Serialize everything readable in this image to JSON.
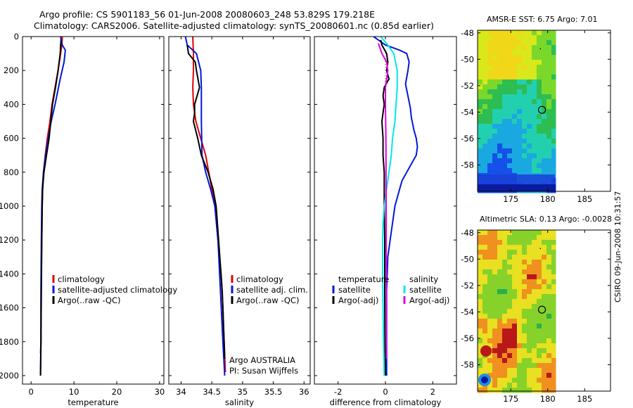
{
  "title_line1": "Argo profile: CS 5901183_56 01-Jun-2008 20080603_248 53.829S 179.218E",
  "title_line2": "Climatology: CARS2006. Satellite-adjusted climatology: synTS_20080601.nc (0.85d earlier)",
  "stamp": "CSIRO 09-Jun-2008 10:31:57",
  "colors": {
    "red": "#e00000",
    "blue": "#0018d8",
    "black": "#000000",
    "cyan": "#00e8e8",
    "magenta": "#e000e0"
  },
  "chart_data": [
    {
      "type": "line",
      "panel": "temperature",
      "xlabel": "temperature",
      "ylabel": "",
      "xlim": [
        -2,
        31
      ],
      "ylim": [
        2050,
        0
      ],
      "xticks": [
        "0",
        "10",
        "20",
        "30"
      ],
      "yticks": [
        "0",
        "200",
        "400",
        "600",
        "800",
        "1000",
        "1200",
        "1400",
        "1600",
        "1800",
        "2000"
      ],
      "legend": [
        "climatology",
        "satellite-adjusted climatology",
        "Argo(..raw -QC)"
      ],
      "series": [
        {
          "name": "climatology",
          "color": "red",
          "x": [
            7.3,
            7.2,
            6.3,
            5.6,
            4.9,
            4.4,
            3.8,
            3.3,
            2.9,
            2.7,
            2.6,
            2.5,
            2.4,
            2.3,
            2.3,
            2.2
          ],
          "y": [
            0,
            50,
            200,
            300,
            400,
            500,
            600,
            700,
            800,
            900,
            1000,
            1200,
            1400,
            1600,
            1800,
            1870
          ]
        },
        {
          "name": "satellite-adjusted climatology",
          "color": "blue",
          "x": [
            6.9,
            7.0,
            7.3,
            8.0,
            7.7,
            6.8,
            5.6,
            4.7,
            4.0,
            3.4,
            2.9,
            2.6,
            2.5,
            2.4,
            2.3,
            2.3,
            2.2
          ],
          "y": [
            0,
            20,
            50,
            80,
            150,
            250,
            400,
            500,
            600,
            700,
            800,
            900,
            1000,
            1200,
            1500,
            1800,
            2000
          ]
        },
        {
          "name": "Argo(..raw -QC)",
          "color": "black",
          "x": [
            7.0,
            6.9,
            6.8,
            6.3,
            5.7,
            5.0,
            4.6,
            4.2,
            3.6,
            3.0,
            2.7,
            2.6,
            2.5,
            2.4,
            2.3,
            2.2
          ],
          "y": [
            20,
            50,
            100,
            200,
            300,
            400,
            500,
            600,
            700,
            800,
            900,
            1000,
            1200,
            1500,
            1800,
            2000
          ]
        }
      ]
    },
    {
      "type": "line",
      "panel": "salinity",
      "xlabel": "salinity",
      "ylabel": "",
      "xlim": [
        33.8,
        36.1
      ],
      "ylim": [
        2050,
        0
      ],
      "xticks": [
        "34",
        "34.5",
        "35",
        "35.5",
        "36"
      ],
      "yticks": [],
      "legend": [
        "climatology",
        "satellite adj. clim.",
        "Argo(..raw -QC)"
      ],
      "annotations": [
        "Argo AUSTRALIA",
        "PI: Susan Wijffels"
      ],
      "series": [
        {
          "name": "climatology",
          "color": "red",
          "x": [
            34.19,
            34.2,
            34.2,
            34.19,
            34.2,
            34.24,
            34.32,
            34.4,
            34.5,
            34.55,
            34.6,
            34.65,
            34.68,
            34.7,
            34.72
          ],
          "y": [
            0,
            100,
            200,
            300,
            400,
            500,
            600,
            700,
            900,
            1000,
            1200,
            1400,
            1600,
            1800,
            1980
          ]
        },
        {
          "name": "satellite adj. clim.",
          "color": "blue",
          "x": [
            34.07,
            34.1,
            34.25,
            34.32,
            34.33,
            34.33,
            34.33,
            34.34,
            34.4,
            34.48,
            34.55,
            34.6,
            34.64,
            34.68,
            34.71
          ],
          "y": [
            0,
            50,
            100,
            200,
            300,
            400,
            500,
            700,
            800,
            900,
            1000,
            1200,
            1500,
            1800,
            2000
          ]
        },
        {
          "name": "Argo(..raw -QC)",
          "color": "black",
          "x": [
            34.1,
            34.12,
            34.23,
            34.25,
            34.3,
            34.22,
            34.22,
            34.2,
            34.27,
            34.33,
            34.44,
            34.52,
            34.57,
            34.61,
            34.67,
            34.71
          ],
          "y": [
            50,
            100,
            150,
            200,
            300,
            400,
            450,
            500,
            600,
            700,
            800,
            900,
            1000,
            1200,
            1500,
            1900
          ]
        }
      ]
    },
    {
      "type": "line",
      "panel": "difference",
      "xlabel": "difference from climatology",
      "ylabel": "",
      "xlim": [
        -3,
        3
      ],
      "ylim": [
        2050,
        0
      ],
      "xticks": [
        "-2",
        "0",
        "2"
      ],
      "yticks": [],
      "legend": [
        "temperature",
        "satellite",
        "Argo(-adj)",
        "salinity",
        "satellite",
        "Argo(-adj)"
      ],
      "series": [
        {
          "name": "temperature satellite",
          "color": "blue",
          "x": [
            -0.5,
            -0.3,
            0.0,
            0.6,
            0.9,
            1.0,
            0.95,
            0.85,
            0.95,
            1.05,
            1.1,
            1.2,
            1.3,
            1.35,
            1.3,
            1.1,
            0.9,
            0.7,
            0.6,
            0.4,
            0.3,
            0.2,
            0.1,
            0.05,
            0.05,
            0.05
          ],
          "y": [
            0,
            20,
            50,
            80,
            100,
            150,
            200,
            280,
            350,
            420,
            480,
            550,
            600,
            650,
            700,
            750,
            800,
            850,
            900,
            1000,
            1100,
            1200,
            1300,
            1500,
            1800,
            2000
          ]
        },
        {
          "name": "temperature Argo(-adj)",
          "color": "black",
          "x": [
            -0.2,
            -0.15,
            0.05,
            0.1,
            0.05,
            0.15,
            -0.05,
            -0.1,
            -0.05,
            -0.1,
            -0.15,
            -0.1,
            -0.1,
            -0.05,
            -0.05,
            -0.05,
            -0.03,
            -0.03,
            -0.02,
            0.0
          ],
          "y": [
            20,
            50,
            100,
            150,
            200,
            250,
            300,
            350,
            400,
            450,
            500,
            600,
            700,
            800,
            900,
            1000,
            1200,
            1500,
            1800,
            2000
          ]
        },
        {
          "name": "salinity satellite",
          "color": "cyan",
          "x": [
            -0.2,
            0.1,
            0.35,
            0.5,
            0.5,
            0.45,
            0.4,
            0.3,
            0.25,
            0.15,
            0.05,
            -0.05,
            -0.1,
            -0.12,
            -0.12,
            -0.1,
            -0.08,
            -0.05
          ],
          "y": [
            0,
            50,
            100,
            200,
            300,
            400,
            500,
            600,
            700,
            800,
            900,
            1000,
            1100,
            1200,
            1400,
            1600,
            1800,
            2000
          ]
        },
        {
          "name": "salinity Argo(-adj)",
          "color": "magenta",
          "x": [
            -0.3,
            -0.2,
            -0.15,
            0.05,
            0.1,
            0.05,
            0.0,
            0.0,
            0.02,
            0.03,
            0.04,
            0.04
          ],
          "y": [
            40,
            80,
            100,
            150,
            200,
            250,
            300,
            400,
            600,
            1000,
            1500,
            1900
          ]
        }
      ]
    },
    {
      "type": "heatmap",
      "panel": "sst-map",
      "title": "AMSR-E SST: 6.75 Argo: 7.01",
      "xlim": [
        170.5,
        188.5
      ],
      "ylim": [
        -60,
        -47.8
      ],
      "xticks": [
        "175",
        "180",
        "185"
      ],
      "yticks": [
        "-48",
        "-50",
        "-52",
        "-54",
        "-56",
        "-58"
      ],
      "marker": {
        "lon": 179.218,
        "lat": -53.829
      }
    },
    {
      "type": "heatmap",
      "panel": "sla-map",
      "title": "Altimetric SLA: 0.13 Argo: -0.0028",
      "xlim": [
        170.5,
        188.5
      ],
      "ylim": [
        -60,
        -47.8
      ],
      "xticks": [
        "175",
        "180",
        "185"
      ],
      "yticks": [
        "-48",
        "-50",
        "-52",
        "-54",
        "-56",
        "-58"
      ],
      "marker": {
        "lon": 179.218,
        "lat": -53.829
      }
    }
  ]
}
